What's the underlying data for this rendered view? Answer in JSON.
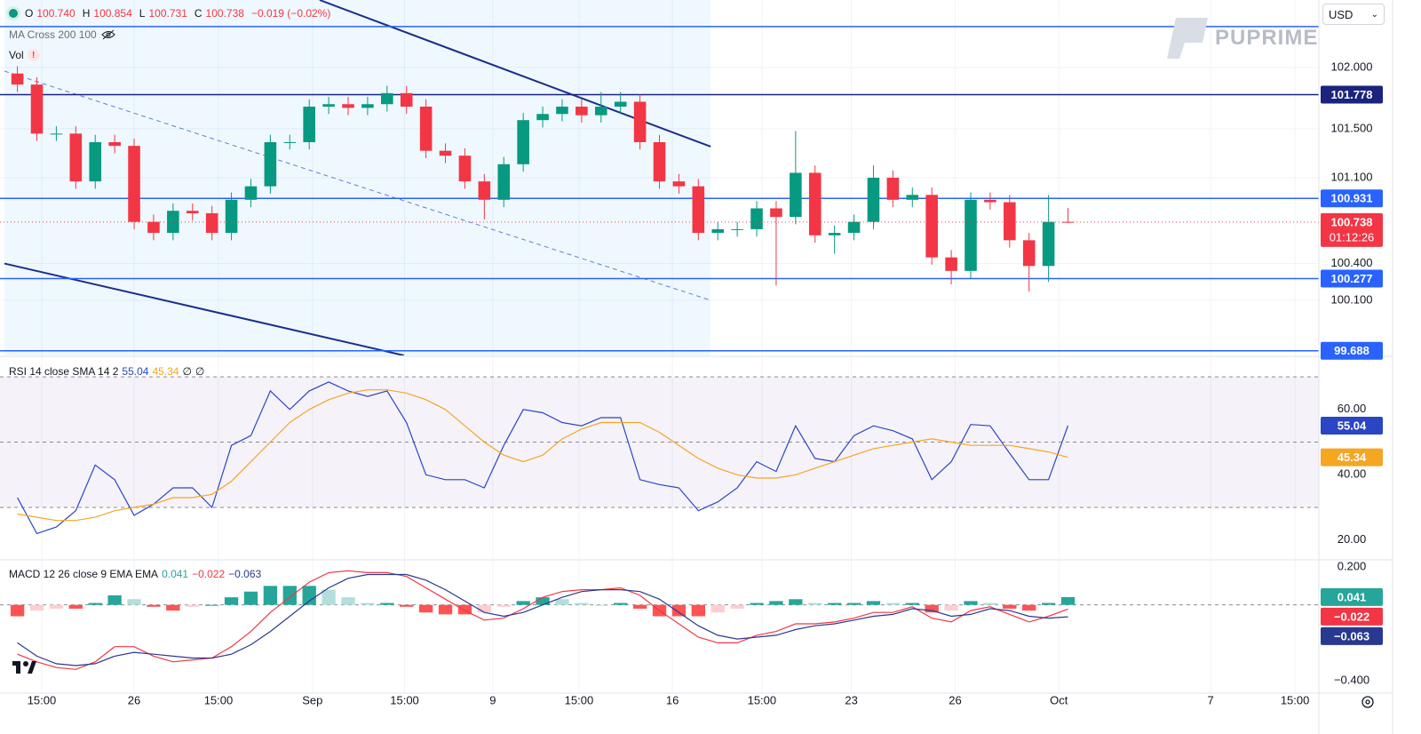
{
  "header": {
    "ohlc": [
      {
        "key": "O",
        "text": "100.740"
      },
      {
        "key": "H",
        "text": "100.854"
      },
      {
        "key": "L",
        "text": "100.731"
      },
      {
        "key": "C",
        "text": "100.738"
      }
    ],
    "change": "−0.019 (−0.02%)",
    "indicators": [
      "MA Cross 200 100",
      "Vol"
    ],
    "currency": "USD",
    "logo": "PUPRIME"
  },
  "chart_data": [
    {
      "type": "candlestick",
      "x": [
        2,
        5,
        8,
        11,
        14,
        17,
        20,
        23,
        26,
        29,
        32,
        35,
        38,
        41,
        44,
        47,
        50,
        53,
        56,
        59,
        62,
        65,
        68,
        71,
        74,
        77,
        80,
        83,
        86,
        89,
        92,
        95,
        98,
        101,
        104,
        107,
        110,
        113,
        116,
        119,
        122,
        125,
        128,
        131,
        134,
        137,
        140,
        143,
        146,
        149,
        152,
        155,
        158,
        161,
        164
      ],
      "open": [
        101.95,
        101.86,
        101.46,
        101.46,
        101.07,
        101.39,
        101.36,
        100.74,
        100.65,
        100.83,
        100.81,
        100.65,
        100.92,
        101.03,
        101.39,
        101.39,
        101.68,
        101.7,
        101.67,
        101.7,
        101.79,
        101.68,
        101.32,
        101.28,
        101.07,
        100.92,
        101.21,
        101.57,
        101.62,
        101.68,
        101.61,
        101.68,
        101.72,
        101.39,
        101.07,
        101.03,
        100.65,
        100.68,
        100.68,
        100.85,
        100.78,
        101.14,
        100.63,
        100.65,
        100.74,
        101.1,
        100.92,
        100.96,
        100.45,
        100.34,
        100.92,
        100.9,
        100.59,
        100.38,
        100.74
      ],
      "high": [
        102.01,
        101.92,
        101.52,
        101.52,
        101.45,
        101.45,
        101.42,
        100.8,
        100.89,
        100.89,
        100.87,
        100.98,
        101.09,
        101.45,
        101.45,
        101.74,
        101.76,
        101.76,
        101.76,
        101.85,
        101.85,
        101.74,
        101.38,
        101.34,
        101.13,
        101.27,
        101.63,
        101.68,
        101.74,
        101.74,
        101.8,
        101.8,
        101.78,
        101.45,
        101.13,
        101.09,
        100.74,
        100.74,
        100.91,
        100.91,
        101.48,
        101.2,
        100.71,
        100.8,
        101.2,
        101.16,
        101.02,
        101.02,
        100.51,
        100.98,
        100.98,
        100.96,
        100.65,
        100.96,
        100.854
      ],
      "low": [
        101.8,
        101.4,
        101.4,
        101.01,
        101.01,
        101.3,
        100.68,
        100.59,
        100.59,
        100.75,
        100.59,
        100.59,
        100.86,
        100.97,
        101.33,
        101.33,
        101.62,
        101.61,
        101.61,
        101.64,
        101.62,
        101.26,
        101.22,
        101.01,
        100.76,
        100.86,
        101.15,
        101.51,
        101.56,
        101.55,
        101.55,
        101.62,
        101.33,
        101.01,
        100.97,
        100.59,
        100.59,
        100.62,
        100.62,
        100.22,
        100.72,
        100.57,
        100.48,
        100.59,
        100.68,
        100.86,
        100.86,
        100.39,
        100.23,
        100.28,
        100.84,
        100.53,
        100.17,
        100.25,
        100.731
      ],
      "close": [
        101.86,
        101.46,
        101.46,
        101.07,
        101.39,
        101.36,
        100.74,
        100.65,
        100.83,
        100.81,
        100.65,
        100.92,
        101.03,
        101.39,
        101.39,
        101.68,
        101.7,
        101.67,
        101.7,
        101.79,
        101.68,
        101.32,
        101.28,
        101.07,
        100.92,
        101.21,
        101.57,
        101.62,
        101.68,
        101.61,
        101.68,
        101.72,
        101.39,
        101.07,
        101.03,
        100.65,
        100.68,
        100.68,
        100.85,
        100.78,
        101.14,
        100.63,
        100.65,
        100.74,
        101.1,
        100.92,
        100.96,
        100.45,
        100.34,
        100.92,
        100.9,
        100.59,
        100.38,
        100.74,
        100.738
      ],
      "up_color": "#089981",
      "down_color": "#f23645",
      "xlim": [
        0,
        202
      ],
      "xticks": [
        {
          "value": 5.75,
          "label": "15:00"
        },
        {
          "value": 20,
          "label": "26"
        },
        {
          "value": 33,
          "label": "15:00"
        },
        {
          "value": 47.5,
          "label": "Sep"
        },
        {
          "value": 61.7,
          "label": "15:00"
        },
        {
          "value": 75.3,
          "label": "9"
        },
        {
          "value": 88.6,
          "label": "15:00"
        },
        {
          "value": 103,
          "label": "16"
        },
        {
          "value": 116.8,
          "label": "15:00"
        },
        {
          "value": 130.6,
          "label": "23"
        },
        {
          "value": 146.6,
          "label": "26"
        },
        {
          "value": 162.6,
          "label": "Oct"
        },
        {
          "value": 186,
          "label": "7"
        },
        {
          "value": 199,
          "label": "15:00"
        }
      ],
      "ylim": [
        99.65,
        102.55
      ],
      "yticks": [
        {
          "value": 102,
          "label": "102.000"
        },
        {
          "value": 101.5,
          "label": "101.500"
        },
        {
          "value": 101.1,
          "label": "101.100"
        },
        {
          "value": 100.4,
          "label": "100.400"
        },
        {
          "value": 100.1,
          "label": "100.100"
        }
      ],
      "grid": true,
      "levels": [
        {
          "value": 102.333,
          "color": "#2962ff",
          "tag": false
        },
        {
          "value": 101.778,
          "color": "#1a237e",
          "tag": true
        },
        {
          "value": 100.931,
          "color": "#2962ff",
          "tag": true
        },
        {
          "value": 100.277,
          "color": "#2962ff",
          "tag": true
        },
        {
          "value": 99.688,
          "color": "#2962ff",
          "tag": true
        }
      ],
      "channel": {
        "shade": [
          0,
          108.9
        ],
        "shade_color": "rgba(33,150,243,0.07)",
        "color": "#1a2f8c",
        "mid_color": "#5b7fe0",
        "upper": [
          [
            48.6,
            102.55
          ],
          [
            108.9,
            101.354
          ]
        ],
        "lower": [
          [
            0,
            100.4
          ],
          [
            61.6,
            99.65
          ]
        ],
        "middle": [
          [
            0,
            101.97
          ],
          [
            108.9,
            100.1
          ]
        ]
      },
      "last_price": {
        "value": 100.738,
        "countdown": "01:12:26",
        "color": "#f23645"
      }
    },
    {
      "type": "line",
      "title": "RSI 14 close SMA 14 2",
      "na": "∅",
      "x": [
        2,
        5,
        8,
        11,
        14,
        17,
        20,
        23,
        26,
        29,
        32,
        35,
        38,
        41,
        44,
        47,
        50,
        53,
        56,
        59,
        62,
        65,
        68,
        71,
        74,
        77,
        80,
        83,
        86,
        89,
        92,
        95,
        98,
        101,
        104,
        107,
        110,
        113,
        116,
        119,
        122,
        125,
        128,
        131,
        134,
        137,
        140,
        143,
        146,
        149,
        152,
        155,
        158,
        161,
        164
      ],
      "series": [
        {
          "color": "#2a46c5",
          "values": [
            33,
            22,
            24,
            29,
            43,
            38.5,
            27.6,
            31,
            36,
            36,
            30,
            49,
            52,
            65.7,
            60,
            65.7,
            68.4,
            65.7,
            64,
            65.7,
            56,
            40,
            38.5,
            38.5,
            36,
            49,
            60,
            59,
            56,
            55,
            57.5,
            57.5,
            38.5,
            37,
            36,
            29,
            31.7,
            36,
            44,
            41,
            55,
            45,
            44,
            52,
            55,
            53.5,
            51,
            38.5,
            44,
            55.4,
            55,
            46.6,
            38.5,
            38.5,
            55.04
          ]
        },
        {
          "color": "#f5a623",
          "values": [
            28,
            27,
            26,
            26,
            27,
            29,
            30,
            31,
            33,
            33,
            34,
            38,
            44,
            50,
            56,
            60,
            63,
            65,
            66,
            66,
            65,
            63,
            60,
            55,
            50,
            46,
            44,
            46,
            51,
            54,
            56,
            56,
            56,
            53,
            49,
            45,
            42,
            40,
            39,
            39,
            40,
            42,
            44,
            46,
            48,
            49,
            50,
            51,
            50,
            49,
            49,
            49,
            48,
            47,
            45.34
          ]
        }
      ],
      "ylim": [
        14.5,
        76
      ],
      "yticks": [
        {
          "value": 60,
          "label": "60.00"
        },
        {
          "value": 40,
          "label": "40.00"
        },
        {
          "value": 20,
          "label": "20.00"
        }
      ],
      "bands": [
        70,
        50,
        30
      ],
      "band_fill": "rgba(126,87,194,0.08)"
    },
    {
      "type": "macd",
      "title": "MACD 12 26 close 9 EMA EMA",
      "x": [
        2,
        5,
        8,
        11,
        14,
        17,
        20,
        23,
        26,
        29,
        32,
        35,
        38,
        41,
        44,
        47,
        50,
        53,
        56,
        59,
        62,
        65,
        68,
        71,
        74,
        77,
        80,
        83,
        86,
        89,
        92,
        95,
        98,
        101,
        104,
        107,
        110,
        113,
        116,
        119,
        122,
        125,
        128,
        131,
        134,
        137,
        140,
        143,
        146,
        149,
        152,
        155,
        158,
        161,
        164
      ],
      "histogram": {
        "values": [
          -0.06,
          -0.03,
          -0.02,
          -0.02,
          0.01,
          0.05,
          0.03,
          -0.01,
          -0.03,
          -0.01,
          0,
          0.04,
          0.07,
          0.1,
          0.1,
          0.1,
          0.08,
          0.04,
          0.01,
          0.01,
          -0.01,
          -0.04,
          -0.05,
          -0.05,
          -0.04,
          -0.01,
          0.02,
          0.04,
          0.03,
          0.01,
          0,
          0.01,
          -0.02,
          -0.06,
          -0.06,
          -0.06,
          -0.04,
          -0.02,
          0.01,
          0.02,
          0.03,
          0.01,
          0.01,
          0.01,
          0.02,
          0.01,
          0.01,
          -0.04,
          -0.03,
          0.02,
          0.01,
          -0.02,
          -0.03,
          0.01,
          0.041
        ],
        "colors": {
          "up_strong": "#26a69a",
          "up_weak": "#b2dfdb",
          "down_strong": "#ff5252",
          "down_weak": "#ffcdd2"
        }
      },
      "series": [
        {
          "color": "#f23645",
          "last_label": "−0.022",
          "values": [
            -0.26,
            -0.3,
            -0.33,
            -0.34,
            -0.3,
            -0.22,
            -0.22,
            -0.27,
            -0.3,
            -0.29,
            -0.28,
            -0.22,
            -0.14,
            -0.04,
            0.04,
            0.12,
            0.17,
            0.18,
            0.17,
            0.17,
            0.15,
            0.09,
            0.03,
            -0.03,
            -0.08,
            -0.07,
            -0.02,
            0.04,
            0.07,
            0.08,
            0.08,
            0.09,
            0.05,
            -0.03,
            -0.1,
            -0.17,
            -0.2,
            -0.2,
            -0.16,
            -0.14,
            -0.1,
            -0.1,
            -0.09,
            -0.07,
            -0.04,
            -0.04,
            -0.01,
            -0.07,
            -0.09,
            -0.03,
            -0.01,
            -0.05,
            -0.09,
            -0.06,
            -0.022
          ]
        },
        {
          "color": "#2a3990",
          "last_label": "−0.063",
          "values": [
            -0.2,
            -0.27,
            -0.31,
            -0.32,
            -0.31,
            -0.27,
            -0.25,
            -0.26,
            -0.27,
            -0.28,
            -0.28,
            -0.26,
            -0.21,
            -0.14,
            -0.06,
            0.02,
            0.09,
            0.14,
            0.16,
            0.16,
            0.16,
            0.13,
            0.08,
            0.02,
            -0.04,
            -0.06,
            -0.04,
            0,
            0.04,
            0.07,
            0.08,
            0.08,
            0.07,
            0.03,
            -0.04,
            -0.11,
            -0.16,
            -0.18,
            -0.17,
            -0.16,
            -0.13,
            -0.11,
            -0.1,
            -0.08,
            -0.06,
            -0.05,
            -0.02,
            -0.03,
            -0.06,
            -0.05,
            -0.02,
            -0.03,
            -0.06,
            -0.07,
            -0.063
          ]
        }
      ],
      "ylim": [
        -0.465,
        0.228
      ],
      "yticks": [
        {
          "value": 0.2,
          "label": "0.200"
        },
        {
          "value": -0.4,
          "label": "−0.400"
        }
      ],
      "zero_line": true
    }
  ]
}
